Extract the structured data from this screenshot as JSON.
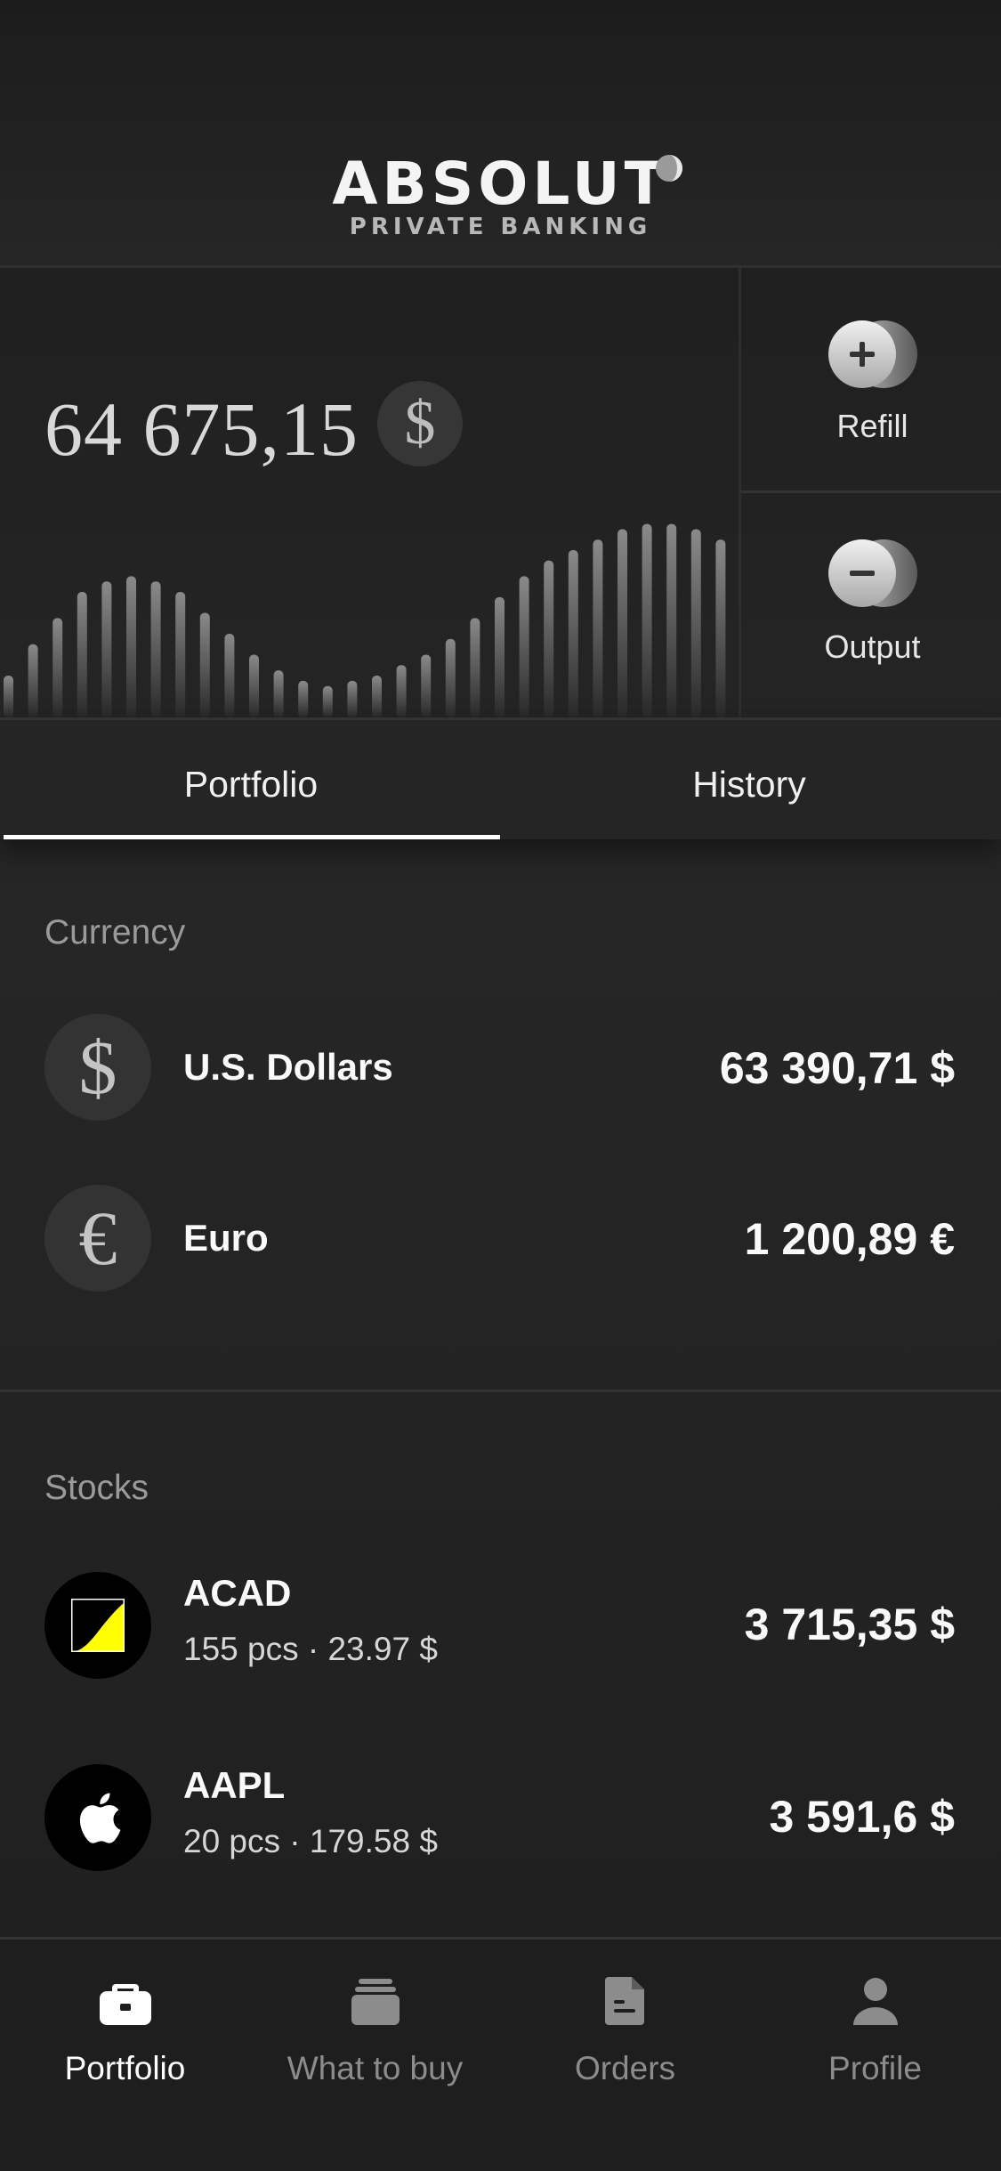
{
  "brand": {
    "wordmark": "ABSOLUT",
    "subtitle": "PRIVATE BANKING"
  },
  "balance": {
    "amount": "64 675,15",
    "currency_symbol": "$"
  },
  "balance_chart": {
    "type": "bar",
    "values": [
      8,
      14,
      19,
      24,
      26,
      27,
      26,
      24,
      20,
      16,
      12,
      9,
      7,
      6,
      7,
      8,
      10,
      12,
      15,
      19,
      23,
      27,
      30,
      32,
      34,
      36,
      37,
      37,
      36,
      34,
      32
    ],
    "ylim": [
      0,
      40
    ]
  },
  "actions": {
    "refill_label": "Refill",
    "output_label": "Output"
  },
  "tabs": {
    "portfolio": "Portfolio",
    "history": "History",
    "active": "portfolio"
  },
  "currency_section": {
    "title": "Currency",
    "items": [
      {
        "symbol": "$",
        "name": "U.S. Dollars",
        "value": "63 390,71 $"
      },
      {
        "symbol": "€",
        "name": "Euro",
        "value": "1 200,89 €"
      }
    ]
  },
  "stocks_section": {
    "title": "Stocks",
    "items": [
      {
        "ticker": "ACAD",
        "detail": "155 pcs · 23.97 $",
        "value": "3 715,35 $",
        "logo": "acad-logo-icon"
      },
      {
        "ticker": "AAPL",
        "detail": "20 pcs · 179.58 $",
        "value": "3 591,6 $",
        "logo": "apple-logo-icon"
      }
    ]
  },
  "bottom_nav": {
    "items": [
      {
        "label": "Portfolio",
        "icon": "briefcase-icon",
        "active": true
      },
      {
        "label": "What to buy",
        "icon": "stack-icon",
        "active": false
      },
      {
        "label": "Orders",
        "icon": "document-icon",
        "active": false
      },
      {
        "label": "Profile",
        "icon": "person-icon",
        "active": false
      }
    ]
  },
  "colors": {
    "background": "#232323",
    "accent": "#ffffff",
    "muted_text": "#9a9a9a",
    "acad_yellow": "#ffff00"
  }
}
